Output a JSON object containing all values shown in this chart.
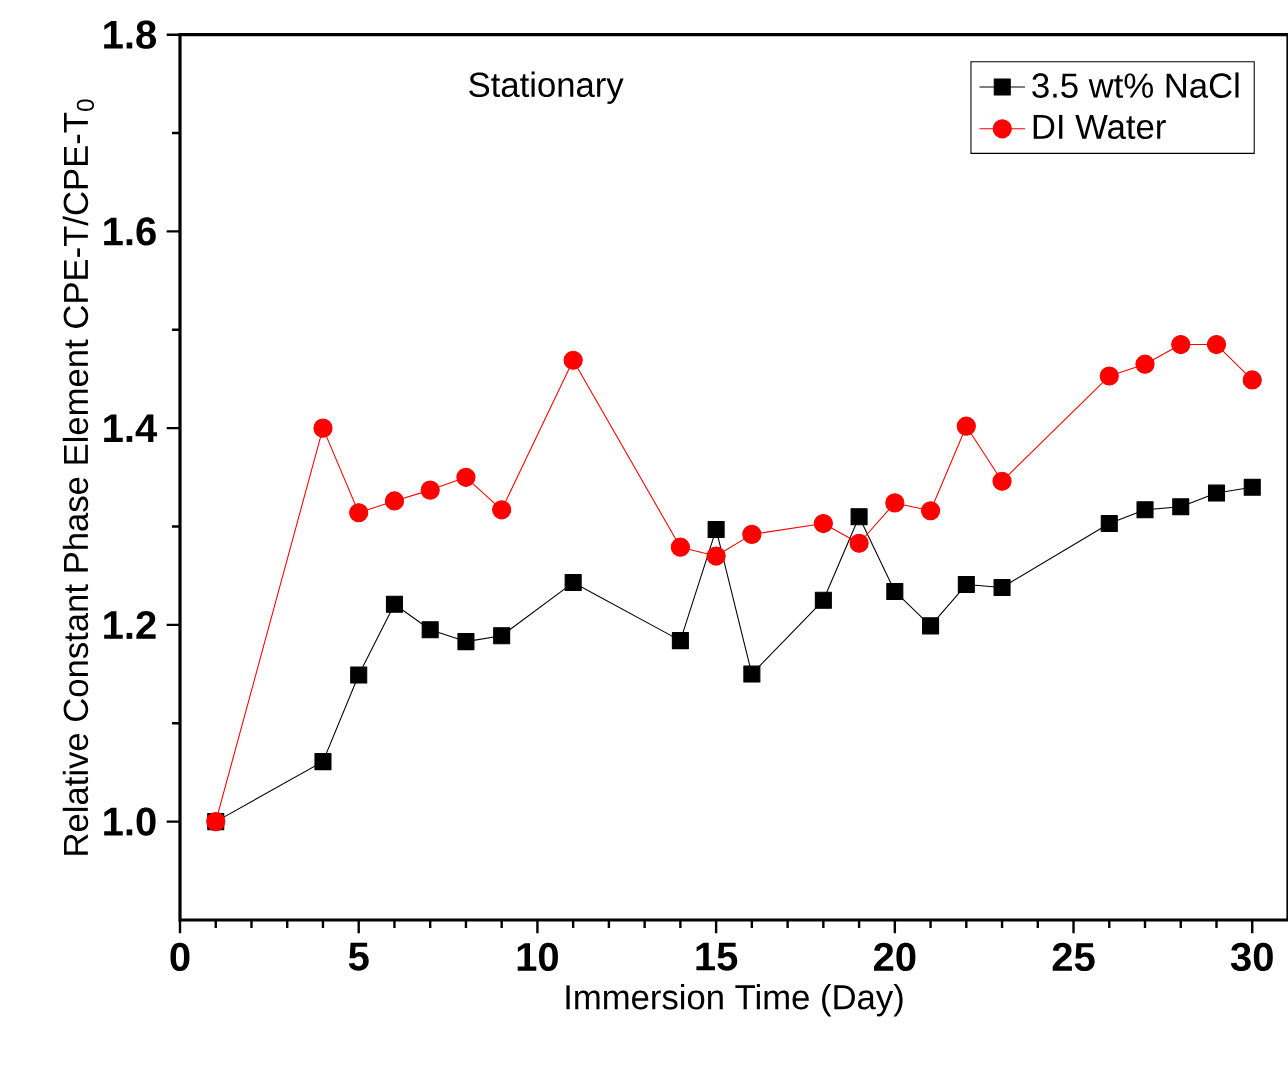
{
  "chart_data": {
    "type": "line",
    "xlabel": "Immersion Time (Day)",
    "ylabel": "Relative Constant Phase Element CPE-T/CPE-T$_{0}$",
    "annotations": [
      "Stationary"
    ],
    "xlim": [
      0,
      31
    ],
    "xticks": [
      0,
      5,
      10,
      15,
      20,
      25,
      30
    ],
    "ylim": [
      0.9,
      1.8
    ],
    "yticks": [
      {
        "value": 1.0,
        "label": "1.0"
      },
      {
        "value": 1.2,
        "label": "1.2"
      },
      {
        "value": 1.4,
        "label": "1.4"
      },
      {
        "value": 1.6,
        "label": "1.6"
      },
      {
        "value": 1.8,
        "label": "1.8"
      }
    ],
    "grid": false,
    "legend": "top right",
    "series": [
      {
        "name": "3.5 wt% NaCl",
        "color": "#000000",
        "marker": "square",
        "x": [
          1,
          4,
          5,
          6,
          7,
          8,
          9,
          11,
          14,
          15,
          16,
          18,
          19,
          20,
          21,
          22,
          23,
          26,
          27,
          28,
          29,
          30
        ],
        "values": [
          1.0,
          1.061,
          1.149,
          1.221,
          1.195,
          1.183,
          1.189,
          1.243,
          1.184,
          1.297,
          1.15,
          1.225,
          1.31,
          1.234,
          1.199,
          1.241,
          1.238,
          1.303,
          1.317,
          1.32,
          1.334,
          1.34
        ]
      },
      {
        "name": "DI Water",
        "color": "#ff0000",
        "marker": "circle",
        "x": [
          1,
          4,
          5,
          6,
          7,
          8,
          9,
          11,
          14,
          15,
          16,
          18,
          19,
          20,
          21,
          22,
          23,
          26,
          27,
          28,
          29,
          30
        ],
        "values": [
          1.0,
          1.4,
          1.314,
          1.326,
          1.337,
          1.35,
          1.317,
          1.469,
          1.279,
          1.27,
          1.292,
          1.303,
          1.283,
          1.324,
          1.316,
          1.402,
          1.346,
          1.453,
          1.465,
          1.485,
          1.485,
          1.449
        ]
      }
    ]
  }
}
